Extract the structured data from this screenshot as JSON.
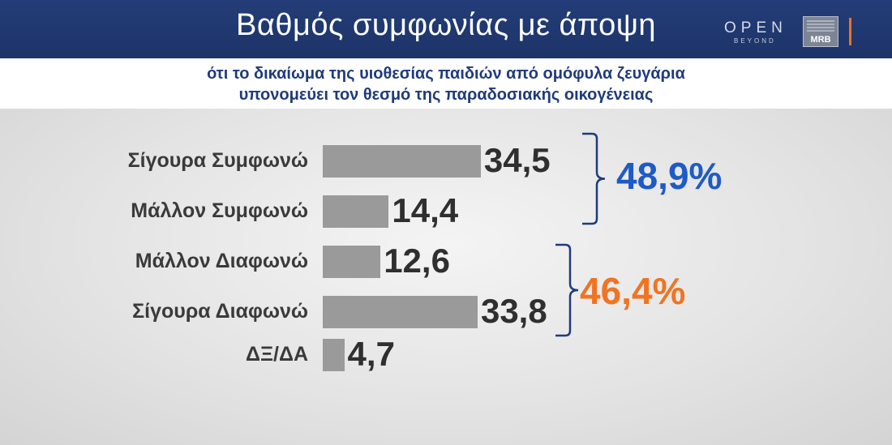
{
  "header": {
    "title": "Βαθμός συμφωνίας με άποψη",
    "logo_open": "OPEN",
    "logo_beyond": "BEYOND",
    "logo_mrb": "MRB"
  },
  "subtitle": {
    "line1": "ότι το δικαίωμα της υιοθεσίας παιδιών από ομόφυλα ζευγάρια",
    "line2": "υπονομεύει τον θεσμό της παραδοσιακής οικογένειας"
  },
  "colors": {
    "header_bg": "#233d78",
    "subtitle_text": "#1f3b7a",
    "bar": "#9a9a9a",
    "agree_accent": "#1f5bc4",
    "disagree_accent": "#f07422",
    "brace_agree": "#1f3b7a",
    "brace_disagree": "#1f3b7a"
  },
  "chart_data": {
    "type": "bar",
    "orientation": "horizontal",
    "categories": [
      "Σίγουρα Συμφωνώ",
      "Μάλλον Συμφωνώ",
      "Μάλλον Διαφωνώ",
      "Σίγουρα Διαφωνώ",
      "ΔΞ/ΔΑ"
    ],
    "values": [
      34.5,
      14.4,
      12.6,
      33.8,
      4.7
    ],
    "value_labels": [
      "34,5",
      "14,4",
      "12,6",
      "33,8",
      "4,7"
    ],
    "groups": [
      {
        "label": "48,9%",
        "categories": [
          0,
          1
        ],
        "color": "agree_accent"
      },
      {
        "label": "46,4%",
        "categories": [
          2,
          3
        ],
        "color": "disagree_accent"
      }
    ]
  }
}
